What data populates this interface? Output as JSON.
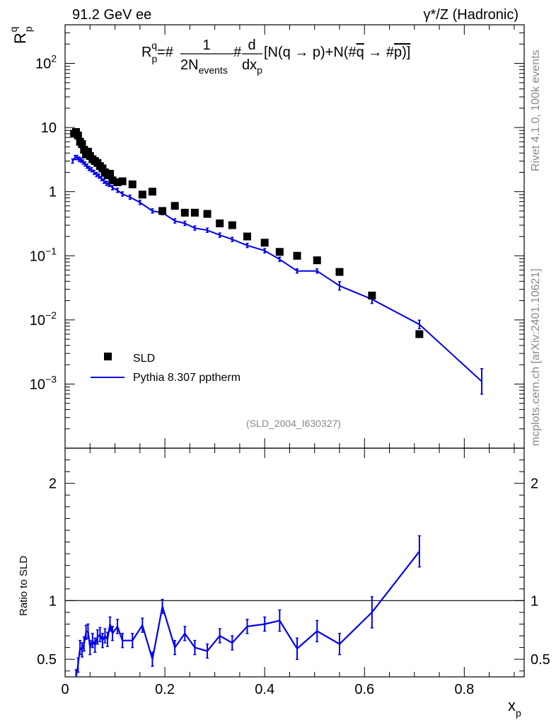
{
  "header": {
    "left": "91.2 GeV ee",
    "right": "γ*/Z (Hadronic)"
  },
  "side": {
    "rivet": "Rivet 4.1.0,  100k events",
    "mcplots": "mcplots.cern.ch [arXiv:2401.10621]"
  },
  "formula": {
    "lhs": "R",
    "lhs_sup": "q",
    "lhs_sub": "p",
    "eq": "=#",
    "num": "1",
    "den": "2N",
    "den_sub": "events",
    "hash": "#",
    "d_num": "d",
    "d_den": "dx",
    "d_den_sub": "p",
    "bracket": "[N(q →  p)+N(#",
    "qbar": "q",
    "arrow": " →  #",
    "pbar": "p)]"
  },
  "colors": {
    "data": "#000000",
    "mc": "#0000ee",
    "watermark": "#888888"
  },
  "chart_data": [
    {
      "type": "scatter",
      "panel": "main",
      "title": "",
      "ylabel": {
        "main": "R",
        "sup": "q",
        "sub": "p"
      },
      "yscale": "log",
      "ylim": [
        0.0001,
        400
      ],
      "xlim": [
        0,
        0.92
      ],
      "yticks": [
        {
          "value": 0.001,
          "base": "10",
          "exp": "−3"
        },
        {
          "value": 0.01,
          "base": "10",
          "exp": "−2"
        },
        {
          "value": 0.1,
          "base": "10",
          "exp": "−1"
        },
        {
          "value": 1,
          "base": "1",
          "exp": ""
        },
        {
          "value": 10,
          "base": "10",
          "exp": ""
        },
        {
          "value": 100,
          "base": "10",
          "exp": "2"
        }
      ],
      "legend_position": "bottom-left",
      "watermark": "(SLD_2004_I630327)",
      "series": [
        {
          "name": "SLD",
          "style": "markers",
          "x": [
            0.018,
            0.022,
            0.026,
            0.03,
            0.034,
            0.038,
            0.042,
            0.046,
            0.05,
            0.055,
            0.06,
            0.065,
            0.07,
            0.075,
            0.08,
            0.085,
            0.09,
            0.095,
            0.105,
            0.115,
            0.135,
            0.155,
            0.175,
            0.195,
            0.22,
            0.24,
            0.26,
            0.285,
            0.31,
            0.335,
            0.365,
            0.4,
            0.43,
            0.465,
            0.505,
            0.55,
            0.615,
            0.71
          ],
          "values": [
            8.0,
            8.5,
            7.5,
            6.0,
            5.5,
            4.5,
            3.8,
            4.2,
            3.6,
            3.2,
            3.0,
            2.8,
            2.5,
            2.3,
            2.0,
            1.8,
            1.9,
            1.5,
            1.4,
            1.45,
            1.3,
            0.9,
            1.0,
            0.5,
            0.6,
            0.47,
            0.47,
            0.45,
            0.32,
            0.3,
            0.2,
            0.16,
            0.115,
            0.1,
            0.085,
            0.056,
            0.024,
            0.006
          ]
        },
        {
          "name": "Pythia 8.307 pptherm",
          "style": "line",
          "x": [
            0.015,
            0.02,
            0.024,
            0.028,
            0.032,
            0.036,
            0.04,
            0.044,
            0.048,
            0.053,
            0.058,
            0.063,
            0.068,
            0.073,
            0.078,
            0.083,
            0.088,
            0.095,
            0.105,
            0.115,
            0.13,
            0.15,
            0.175,
            0.195,
            0.22,
            0.24,
            0.26,
            0.285,
            0.31,
            0.335,
            0.365,
            0.4,
            0.43,
            0.465,
            0.505,
            0.55,
            0.615,
            0.71,
            0.835
          ],
          "values": [
            3.0,
            3.4,
            3.4,
            3.2,
            3.1,
            2.9,
            2.7,
            2.5,
            2.3,
            2.2,
            2.0,
            1.85,
            1.75,
            1.6,
            1.45,
            1.35,
            1.3,
            1.15,
            1.05,
            0.92,
            0.82,
            0.68,
            0.5,
            0.47,
            0.35,
            0.32,
            0.27,
            0.25,
            0.21,
            0.18,
            0.145,
            0.12,
            0.088,
            0.058,
            0.058,
            0.034,
            0.021,
            0.0085,
            0.0011
          ]
        }
      ]
    },
    {
      "type": "line",
      "panel": "ratio",
      "xlabel": {
        "main": "x",
        "sub": "p"
      },
      "ylabel": "Ratio to SLD",
      "ylim": [
        0.35,
        2.3
      ],
      "xlim": [
        0,
        0.92
      ],
      "xticks": [
        "0",
        "0.2",
        "0.4",
        "0.6",
        "0.8"
      ],
      "xtick_values": [
        0,
        0.2,
        0.4,
        0.6,
        0.8
      ],
      "yticks": [
        "0.5",
        "1",
        "2"
      ],
      "ytick_values": [
        0.5,
        1,
        2
      ],
      "reference_line": 1,
      "series": [
        {
          "name": "Pythia 8.307 pptherm / SLD",
          "x": [
            0.022,
            0.026,
            0.03,
            0.034,
            0.038,
            0.042,
            0.046,
            0.05,
            0.055,
            0.06,
            0.065,
            0.07,
            0.075,
            0.08,
            0.085,
            0.09,
            0.095,
            0.105,
            0.115,
            0.135,
            0.155,
            0.175,
            0.195,
            0.22,
            0.24,
            0.26,
            0.285,
            0.31,
            0.335,
            0.365,
            0.4,
            0.43,
            0.465,
            0.505,
            0.55,
            0.615,
            0.71
          ],
          "values": [
            0.3,
            0.45,
            0.6,
            0.58,
            0.63,
            0.73,
            0.74,
            0.6,
            0.66,
            0.62,
            0.69,
            0.71,
            0.66,
            0.7,
            0.67,
            0.8,
            0.72,
            0.78,
            0.66,
            0.66,
            0.79,
            0.5,
            0.95,
            0.6,
            0.72,
            0.6,
            0.57,
            0.7,
            0.64,
            0.78,
            0.8,
            0.83,
            0.59,
            0.74,
            0.63,
            0.9,
            1.42
          ]
        }
      ]
    }
  ]
}
